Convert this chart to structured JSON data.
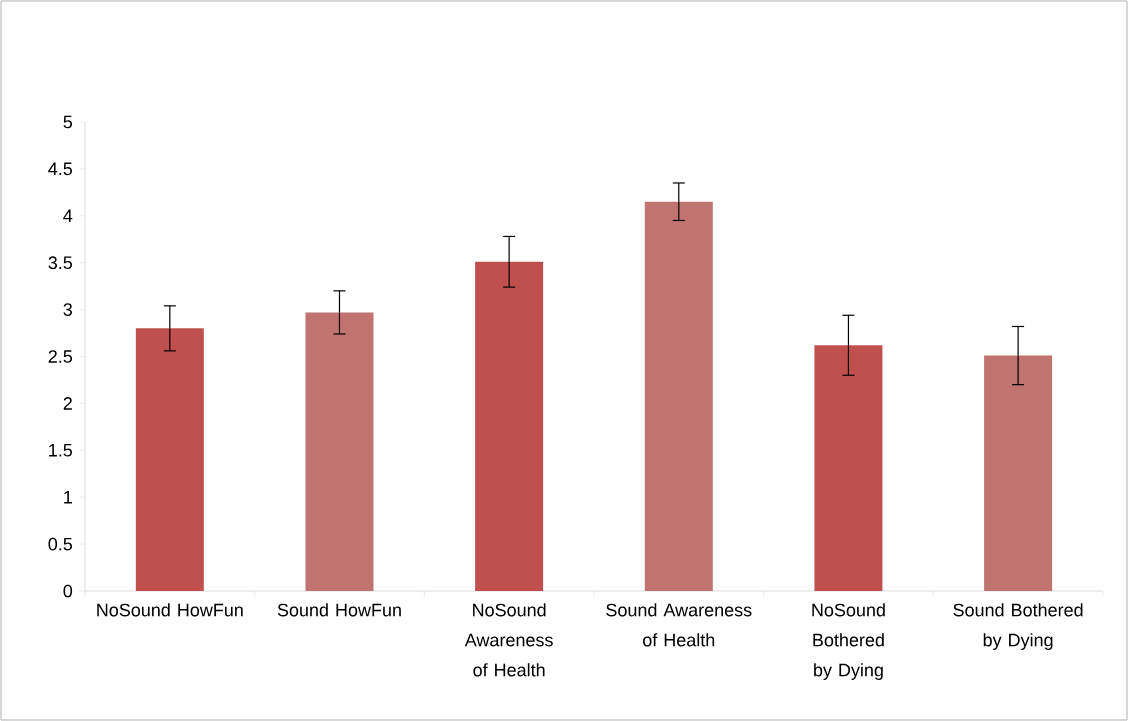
{
  "chart_data": {
    "type": "bar",
    "categories": [
      "NoSound HowFun",
      "Sound HowFun",
      "NoSound Awareness of Health",
      "Sound Awareness of Health",
      "NoSound Bothered by Dying",
      "Sound Bothered by Dying"
    ],
    "values": [
      2.8,
      2.97,
      3.51,
      4.15,
      2.62,
      2.51
    ],
    "errors": [
      0.24,
      0.23,
      0.27,
      0.2,
      0.32,
      0.31
    ],
    "colors": [
      "#c0504d",
      "#c0736f",
      "#c0504d",
      "#c0736f",
      "#c0504d",
      "#c0736f"
    ],
    "ylim": [
      0,
      5
    ],
    "yticks": [
      0,
      0.5,
      1,
      1.5,
      2,
      2.5,
      3,
      3.5,
      4,
      4.5,
      5
    ]
  }
}
